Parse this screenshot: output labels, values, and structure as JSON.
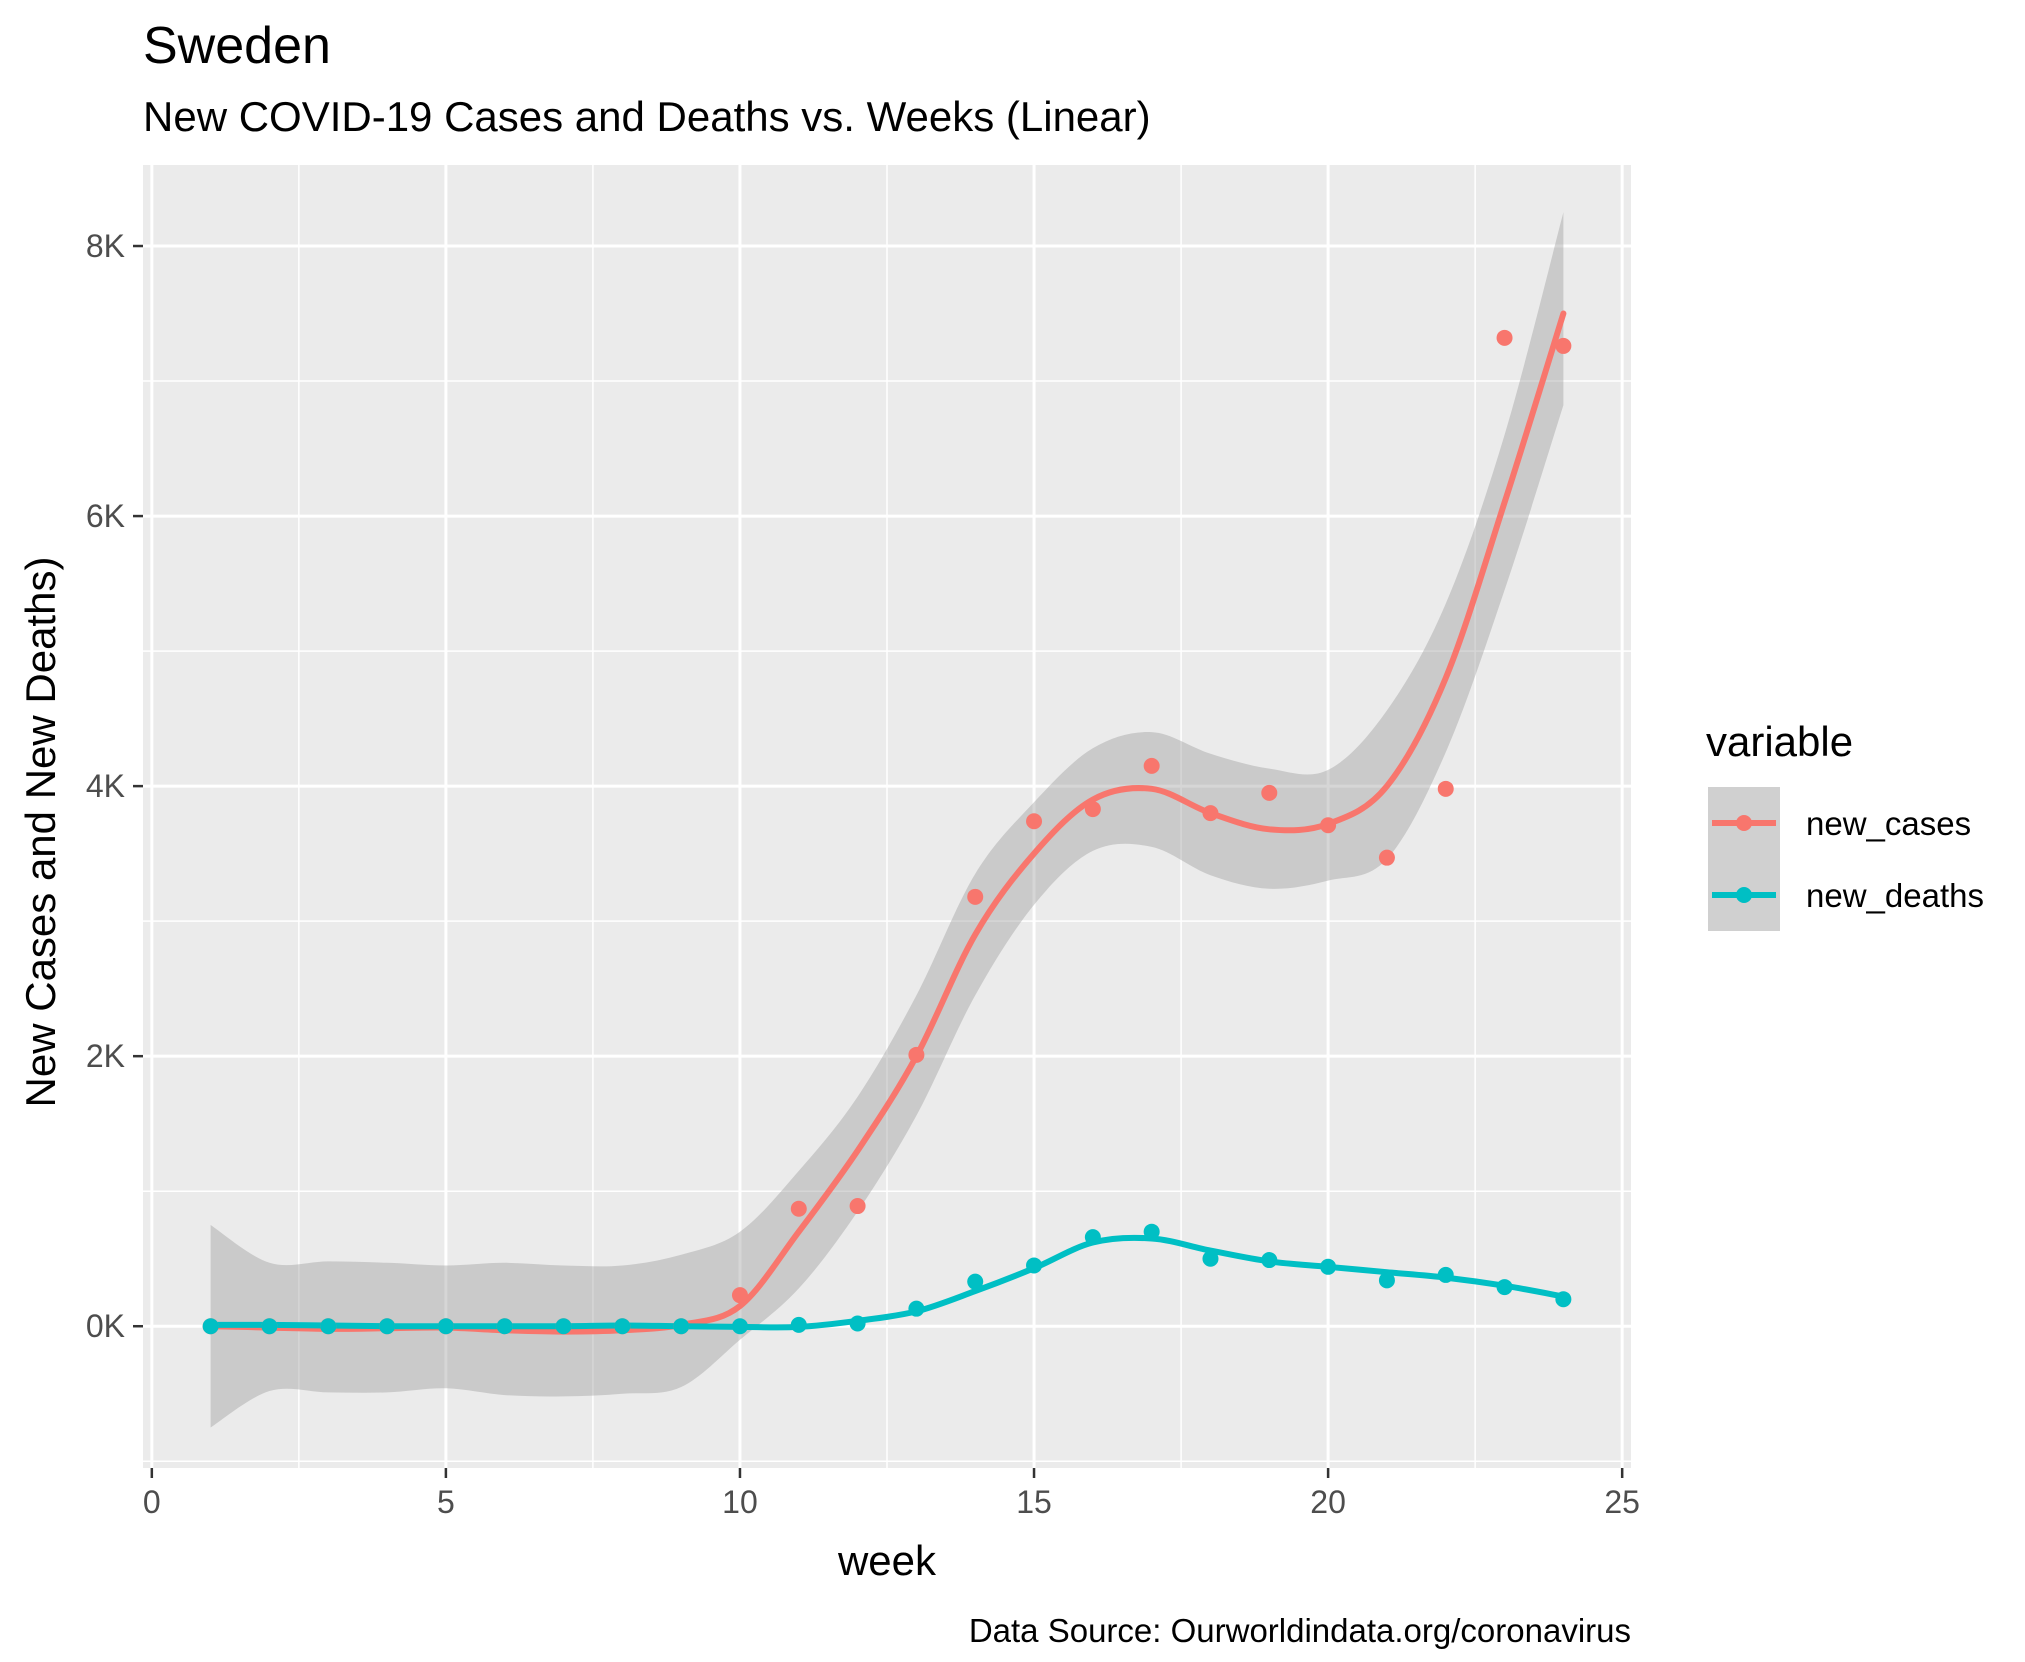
{
  "chart_data": {
    "type": "scatter",
    "title": "Sweden",
    "subtitle": "New COVID-19 Cases and Deaths vs. Weeks (Linear)",
    "xlabel": "week",
    "ylabel": "New Cases and New Deaths)",
    "caption": "Data Source: Ourworldindata.org/coronavirus",
    "xlim": [
      -0.15,
      25.15
    ],
    "ylim": [
      -1050,
      8600
    ],
    "x_ticks": [
      0,
      5,
      10,
      15,
      20,
      25
    ],
    "x_tick_labels": [
      "0",
      "5",
      "10",
      "15",
      "20",
      "25"
    ],
    "y_ticks": [
      0,
      2000,
      4000,
      6000,
      8000
    ],
    "y_tick_labels": [
      "0K",
      "2K",
      "4K",
      "6K",
      "8K"
    ],
    "grid": true,
    "legend": {
      "title": "variable",
      "position": "right"
    },
    "x": [
      1,
      2,
      3,
      4,
      5,
      6,
      7,
      8,
      9,
      10,
      11,
      12,
      13,
      14,
      15,
      16,
      17,
      18,
      19,
      20,
      21,
      22,
      23,
      24
    ],
    "series": [
      {
        "name": "new_cases",
        "color": "#F8766D",
        "values": [
          0,
          0,
          0,
          0,
          0,
          0,
          0,
          0,
          0,
          230,
          870,
          890,
          2010,
          3180,
          3740,
          3830,
          4150,
          3800,
          3950,
          3710,
          3470,
          3980,
          7320,
          7260
        ],
        "smooth": [
          0,
          -10,
          -20,
          -15,
          -10,
          -30,
          -40,
          -30,
          10,
          150,
          700,
          1300,
          2000,
          2900,
          3500,
          3900,
          3980,
          3800,
          3680,
          3720,
          4000,
          4800,
          6100,
          7500
        ],
        "band_upper": [
          750,
          470,
          480,
          470,
          450,
          470,
          450,
          450,
          530,
          700,
          1150,
          1700,
          2450,
          3350,
          3880,
          4280,
          4400,
          4240,
          4130,
          4120,
          4560,
          5350,
          6600,
          8250
        ],
        "band_lower": [
          -750,
          -480,
          -490,
          -490,
          -460,
          -510,
          -520,
          -500,
          -450,
          -100,
          280,
          850,
          1560,
          2450,
          3120,
          3520,
          3550,
          3340,
          3240,
          3300,
          3460,
          4250,
          5450,
          6820
        ]
      },
      {
        "name": "new_deaths",
        "color": "#00BFC4",
        "values": [
          0,
          0,
          0,
          0,
          0,
          0,
          0,
          0,
          0,
          0,
          10,
          20,
          130,
          330,
          450,
          660,
          700,
          500,
          490,
          440,
          340,
          380,
          290,
          200
        ],
        "smooth": [
          10,
          10,
          5,
          0,
          0,
          0,
          0,
          5,
          0,
          -5,
          -5,
          40,
          110,
          260,
          430,
          620,
          650,
          560,
          480,
          440,
          400,
          360,
          300,
          220
        ]
      }
    ]
  }
}
